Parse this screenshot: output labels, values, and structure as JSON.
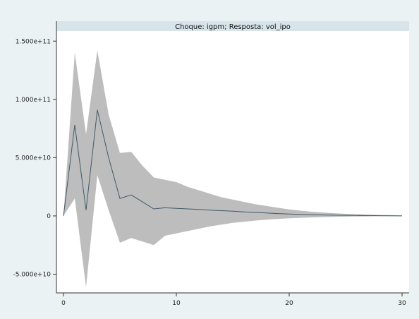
{
  "chart_data": {
    "type": "area",
    "title": "Choque: igpm; Resposta: vol_ipo",
    "xlabel": "",
    "ylabel": "",
    "xlim": [
      0,
      30
    ],
    "ylim": [
      -60000000000.0,
      155000000000.0
    ],
    "x_ticks": [
      0,
      10,
      20,
      30
    ],
    "x_tick_labels": [
      "0",
      "10",
      "20",
      "30"
    ],
    "y_ticks": [
      150000000000.0,
      100000000000.0,
      50000000000.0,
      0,
      -50000000000.0
    ],
    "y_tick_labels": [
      "1.500e+11",
      "1.000e+11",
      "5.000e+10",
      "0",
      "-5.000e+10"
    ],
    "grid": false,
    "legend": "none",
    "x": [
      0,
      1,
      2,
      3,
      4,
      5,
      6,
      7,
      8,
      9,
      10,
      11,
      12,
      13,
      14,
      15,
      16,
      17,
      18,
      19,
      20,
      21,
      22,
      23,
      24,
      25,
      26,
      27,
      28,
      29,
      30
    ],
    "series": [
      {
        "values": [
          0,
          78000000000.0,
          5000000000.0,
          91000000000.0,
          50000000000.0,
          15000000000.0,
          18000000000.0,
          12000000000.0,
          6000000000.0,
          7000000000.0,
          6500000000.0,
          6000000000.0,
          5500000000.0,
          5000000000.0,
          4500000000.0,
          4000000000.0,
          3500000000.0,
          3000000000.0,
          2500000000.0,
          2000000000.0,
          1600000000.0,
          1300000000.0,
          1000000000.0,
          800000000.0,
          600000000.0,
          500000000.0,
          400000000.0,
          300000000.0,
          200000000.0,
          100000000.0,
          0
        ],
        "upper": [
          0,
          140000000000.0,
          70000000000.0,
          142000000000.0,
          87000000000.0,
          54000000000.0,
          55000000000.0,
          43000000000.0,
          33000000000.0,
          31000000000.0,
          29000000000.0,
          25000000000.0,
          22000000000.0,
          19000000000.0,
          16000000000.0,
          14000000000.0,
          12000000000.0,
          10000000000.0,
          8500000000.0,
          7000000000.0,
          5500000000.0,
          4500000000.0,
          3600000000.0,
          2900000000.0,
          2300000000.0,
          1800000000.0,
          1400000000.0,
          1100000000.0,
          800000000.0,
          600000000.0,
          400000000.0
        ],
        "lower": [
          0,
          15000000000.0,
          -61000000000.0,
          35000000000.0,
          5000000000.0,
          -23000000000.0,
          -19000000000.0,
          -22000000000.0,
          -25000000000.0,
          -17000000000.0,
          -15000000000.0,
          -13000000000.0,
          -11000000000.0,
          -9000000000.0,
          -7500000000.0,
          -6000000000.0,
          -5000000000.0,
          -4000000000.0,
          -3200000000.0,
          -2600000000.0,
          -2000000000.0,
          -1600000000.0,
          -1300000000.0,
          -1000000000.0,
          -800000000.0,
          -600000000.0,
          -500000000.0,
          -400000000.0,
          -300000000.0,
          -200000000.0,
          -100000000.0
        ]
      }
    ],
    "colors": {
      "band": "#bdbdbd",
      "line": "#3f5a66",
      "plot_bg": "#ffffff",
      "frame_bg": "#eaf2f3",
      "title_bar": "#d7e4ea",
      "axis": "#333333"
    }
  }
}
